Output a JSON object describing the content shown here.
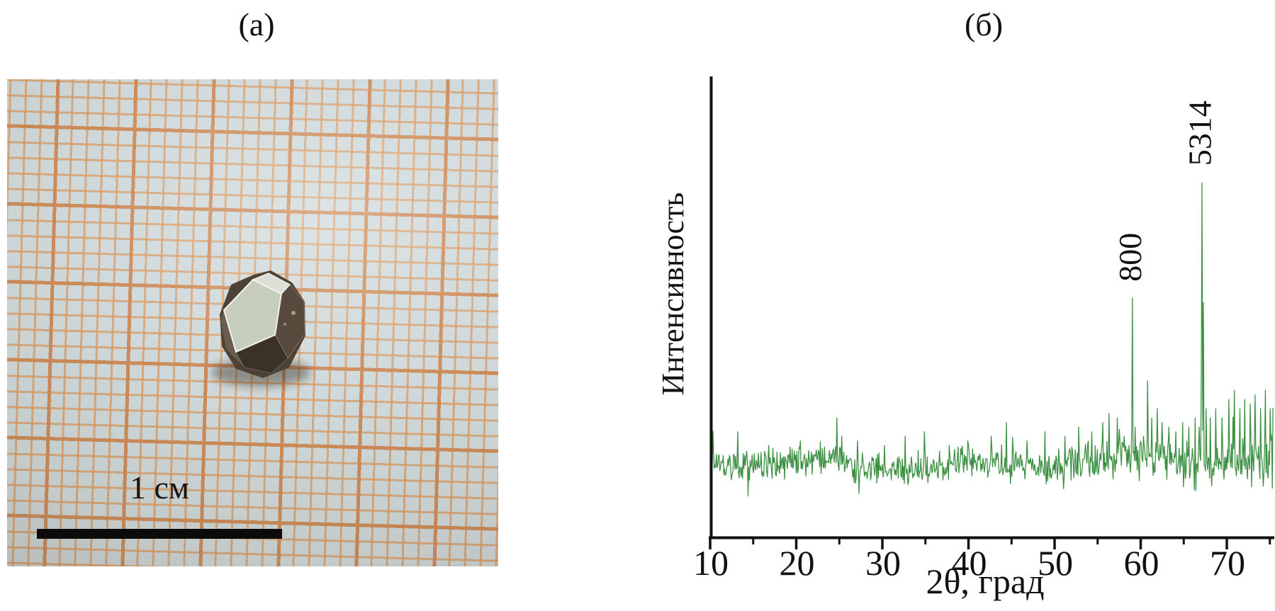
{
  "figure": {
    "panel_a_label": "(а)",
    "panel_b_label": "(б)"
  },
  "photo": {
    "scale_bar_label": "1 см",
    "paper_background": "#ced8da",
    "grid_minor_color": "#d99c66",
    "grid_major_color": "#cd8a58",
    "scale_bar_color": "#0b0b0b",
    "crystal_facets": {
      "silhouette": "#4c4236",
      "front_bright": "#c7cebd",
      "top": "#dbdfd5",
      "right_dark": "#57493b",
      "bottom_dark": "#3a3127",
      "left_mid": "#6b5d4d"
    }
  },
  "chart_data": {
    "type": "line",
    "title": "",
    "xlabel": "2θ, град",
    "ylabel": "Интенсивность",
    "xlim": [
      10,
      75.4
    ],
    "x_ticks": [
      10,
      20,
      30,
      40,
      50,
      60,
      70
    ],
    "x_minor_ticks": [
      15,
      25,
      35,
      45,
      55,
      65,
      75
    ],
    "y_ticks": [],
    "grid": false,
    "legend": false,
    "line_color": "#3a8f41",
    "axis_color": "#111111",
    "noise": {
      "seed": 20250114,
      "step_deg": 0.08,
      "baseline_frac": 0.16,
      "amplitude_frac": 0.052,
      "high_angle_boost_from_deg": 50
    },
    "peaks": [
      {
        "two_theta": 59.0,
        "height_frac": 0.52,
        "label": "800"
      },
      {
        "two_theta": 60.8,
        "height_frac": 0.34,
        "label": null
      },
      {
        "two_theta": 67.1,
        "height_frac": 0.77,
        "label": "5314"
      },
      {
        "two_theta": 67.3,
        "height_frac": 0.51,
        "label": null
      }
    ],
    "minor_spikes": [
      [
        13.2,
        0.23
      ],
      [
        16.8,
        0.2
      ],
      [
        20.5,
        0.21
      ],
      [
        24.7,
        0.26
      ],
      [
        25.3,
        0.22
      ],
      [
        27.1,
        0.21
      ],
      [
        30.2,
        0.2
      ],
      [
        32.6,
        0.22
      ],
      [
        34.9,
        0.23
      ],
      [
        37.8,
        0.2
      ],
      [
        39.9,
        0.21
      ],
      [
        42.6,
        0.22
      ],
      [
        44.4,
        0.25
      ],
      [
        46.8,
        0.21
      ],
      [
        48.9,
        0.23
      ],
      [
        51.2,
        0.22
      ],
      [
        52.8,
        0.24
      ],
      [
        54.3,
        0.23
      ],
      [
        55.6,
        0.25
      ],
      [
        56.3,
        0.27
      ],
      [
        57.3,
        0.26
      ],
      [
        58.1,
        0.22
      ],
      [
        58.65,
        0.2
      ],
      [
        59.35,
        0.24
      ],
      [
        59.9,
        0.2
      ],
      [
        60.35,
        0.22
      ],
      [
        61.3,
        0.26
      ],
      [
        61.9,
        0.28
      ],
      [
        62.5,
        0.25
      ],
      [
        63.3,
        0.24
      ],
      [
        64.1,
        0.23
      ],
      [
        64.9,
        0.25
      ],
      [
        65.6,
        0.24
      ],
      [
        66.3,
        0.26
      ],
      [
        66.8,
        0.24
      ],
      [
        67.6,
        0.28
      ],
      [
        68.1,
        0.26
      ],
      [
        68.7,
        0.28
      ],
      [
        69.4,
        0.26
      ],
      [
        70.2,
        0.3
      ],
      [
        70.9,
        0.32
      ],
      [
        71.5,
        0.28
      ],
      [
        72.1,
        0.3
      ],
      [
        72.7,
        0.29
      ],
      [
        73.3,
        0.31
      ],
      [
        73.9,
        0.28
      ],
      [
        74.5,
        0.32
      ],
      [
        75.0,
        0.28
      ]
    ]
  }
}
